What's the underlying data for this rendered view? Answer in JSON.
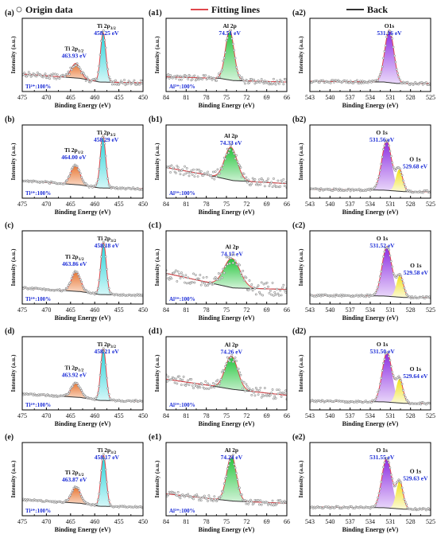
{
  "legend": {
    "origin": "Origin data",
    "fitting": "Fitting lines",
    "back": "Back"
  },
  "colors": {
    "ti_half": "#e8742f",
    "ti_three_half": "#1fd3d9",
    "al": "#22c43a",
    "o_main": "#8b2be2",
    "o_shoulder": "#f0e21a",
    "fit": "#e0474c",
    "back": "#333333",
    "label_blue": "#1a2bd6"
  },
  "xlabel": "Binding Energy (eV)",
  "ylabel": "Intensity (a.u.)",
  "chart_data": [
    {
      "id": "a",
      "type": "line",
      "row": 0,
      "col": 0,
      "label": "(a)",
      "xlim": [
        475,
        450
      ],
      "xticks": [
        475,
        470,
        465,
        460,
        455,
        450
      ],
      "ylim": [
        0,
        1
      ],
      "badge": "Ti⁴⁺:100%",
      "noise": 0.035,
      "background": [
        [
          475,
          0.24
        ],
        [
          463,
          0.18
        ],
        [
          459,
          0.13
        ],
        [
          450,
          0.12
        ]
      ],
      "peaks": [
        {
          "center": 463.93,
          "fwhm": 2.2,
          "height": 0.2,
          "fill": "ti_half",
          "name": "Ti 2p",
          "sub": "1/2",
          "value": "463.93 eV"
        },
        {
          "center": 458.25,
          "fwhm": 1.3,
          "height": 0.68,
          "fill": "ti_three_half",
          "name": "Ti 2p",
          "sub": "3/2",
          "value": "458.25 eV"
        }
      ]
    },
    {
      "id": "a1",
      "type": "line",
      "row": 0,
      "col": 1,
      "label": "(a1)",
      "xlim": [
        84,
        66
      ],
      "xticks": [
        84,
        81,
        78,
        75,
        72,
        69,
        66
      ],
      "ylim": [
        0,
        1
      ],
      "badge": "Al³⁺:100%",
      "noise": 0.04,
      "background": [
        [
          84,
          0.2
        ],
        [
          76,
          0.18
        ],
        [
          74,
          0.15
        ],
        [
          66,
          0.13
        ]
      ],
      "peaks": [
        {
          "center": 74.51,
          "fwhm": 1.5,
          "height": 0.68,
          "fill": "al",
          "name": "Al 2p",
          "sub": "",
          "value": "74.51 eV"
        }
      ]
    },
    {
      "id": "a2",
      "type": "line",
      "row": 0,
      "col": 2,
      "label": "(a2)",
      "xlim": [
        543,
        525
      ],
      "xticks": [
        543,
        540,
        537,
        534,
        531,
        528,
        525
      ],
      "ylim": [
        0,
        1
      ],
      "badge": "",
      "noise": 0.02,
      "background": [
        [
          543,
          0.14
        ],
        [
          532,
          0.13
        ],
        [
          530,
          0.11
        ],
        [
          525,
          0.11
        ]
      ],
      "peaks": [
        {
          "center": 531.16,
          "fwhm": 1.6,
          "height": 0.72,
          "fill": "o_main",
          "name": "O1s",
          "sub": "",
          "value": "531.16 eV"
        }
      ]
    },
    {
      "id": "b",
      "type": "line",
      "row": 1,
      "col": 0,
      "label": "(b)",
      "xlim": [
        475,
        450
      ],
      "xticks": [
        475,
        470,
        465,
        460,
        455,
        450
      ],
      "ylim": [
        0,
        1
      ],
      "badge": "Ti⁴⁺:100%",
      "noise": 0.015,
      "background": [
        [
          475,
          0.24
        ],
        [
          463,
          0.18
        ],
        [
          459,
          0.14
        ],
        [
          450,
          0.13
        ]
      ],
      "peaks": [
        {
          "center": 464.0,
          "fwhm": 2.2,
          "height": 0.27,
          "fill": "ti_half",
          "name": "Ti 2p",
          "sub": "1/2",
          "value": "464.00 eV"
        },
        {
          "center": 458.29,
          "fwhm": 1.3,
          "height": 0.72,
          "fill": "ti_three_half",
          "name": "Ti 2p",
          "sub": "3/2",
          "value": "458.29 eV"
        }
      ]
    },
    {
      "id": "b1",
      "type": "line",
      "row": 1,
      "col": 1,
      "label": "(b1)",
      "xlim": [
        84,
        66
      ],
      "xticks": [
        84,
        81,
        78,
        75,
        72,
        69,
        66
      ],
      "ylim": [
        0,
        1
      ],
      "badge": "Al³⁺:100%",
      "noise": 0.06,
      "background": [
        [
          84,
          0.42
        ],
        [
          78,
          0.32
        ],
        [
          74,
          0.24
        ],
        [
          66,
          0.2
        ]
      ],
      "peaks": [
        {
          "center": 74.33,
          "fwhm": 2.2,
          "height": 0.45,
          "fill": "al",
          "name": "Al 2p",
          "sub": "",
          "value": "74.33 eV"
        }
      ]
    },
    {
      "id": "b2",
      "type": "line",
      "row": 1,
      "col": 2,
      "label": "(b2)",
      "xlim": [
        543,
        525
      ],
      "xticks": [
        543,
        540,
        537,
        534,
        531,
        528,
        525
      ],
      "ylim": [
        0,
        1
      ],
      "badge": "",
      "noise": 0.015,
      "background": [
        [
          543,
          0.12
        ],
        [
          532,
          0.11
        ],
        [
          529,
          0.09
        ],
        [
          525,
          0.09
        ]
      ],
      "peaks": [
        {
          "center": 531.56,
          "fwhm": 1.7,
          "height": 0.68,
          "fill": "o_main",
          "name": "O 1s",
          "sub": "",
          "value": "531.56 eV"
        },
        {
          "center": 529.68,
          "fwhm": 1.2,
          "height": 0.3,
          "fill": "o_shoulder",
          "name": "O 1s",
          "sub": "",
          "value": "529.68 eV"
        }
      ]
    },
    {
      "id": "c",
      "type": "line",
      "row": 2,
      "col": 0,
      "label": "(c)",
      "xlim": [
        475,
        450
      ],
      "xticks": [
        475,
        470,
        465,
        460,
        455,
        450
      ],
      "ylim": [
        0,
        1
      ],
      "badge": "Ti⁴⁺:100%",
      "noise": 0.012,
      "background": [
        [
          475,
          0.22
        ],
        [
          463,
          0.17
        ],
        [
          459,
          0.13
        ],
        [
          450,
          0.12
        ]
      ],
      "peaks": [
        {
          "center": 463.86,
          "fwhm": 2.2,
          "height": 0.27,
          "fill": "ti_half",
          "name": "Ti 2p",
          "sub": "1/2",
          "value": "463.86 eV"
        },
        {
          "center": 458.18,
          "fwhm": 1.3,
          "height": 0.72,
          "fill": "ti_three_half",
          "name": "Ti 2p",
          "sub": "3/2",
          "value": "458.18 eV"
        }
      ]
    },
    {
      "id": "c1",
      "type": "line",
      "row": 2,
      "col": 1,
      "label": "(c1)",
      "xlim": [
        84,
        66
      ],
      "xticks": [
        84,
        81,
        78,
        75,
        72,
        69,
        66
      ],
      "ylim": [
        0,
        1
      ],
      "badge": "Al³⁺:100%",
      "noise": 0.09,
      "background": [
        [
          84,
          0.42
        ],
        [
          78,
          0.3
        ],
        [
          74,
          0.22
        ],
        [
          66,
          0.2
        ]
      ],
      "peaks": [
        {
          "center": 74.17,
          "fwhm": 2.8,
          "height": 0.4,
          "fill": "al",
          "name": "Al 2p",
          "sub": "",
          "value": "74.17 eV"
        }
      ]
    },
    {
      "id": "c2",
      "type": "line",
      "row": 2,
      "col": 2,
      "label": "(c2)",
      "xlim": [
        543,
        525
      ],
      "xticks": [
        543,
        540,
        537,
        534,
        531,
        528,
        525
      ],
      "ylim": [
        0,
        1
      ],
      "badge": "",
      "noise": 0.015,
      "background": [
        [
          543,
          0.12
        ],
        [
          532,
          0.11
        ],
        [
          529,
          0.09
        ],
        [
          525,
          0.09
        ]
      ],
      "peaks": [
        {
          "center": 531.52,
          "fwhm": 1.7,
          "height": 0.68,
          "fill": "o_main",
          "name": "O 1s",
          "sub": "",
          "value": "531.52 eV"
        },
        {
          "center": 529.58,
          "fwhm": 1.2,
          "height": 0.3,
          "fill": "o_shoulder",
          "name": "O 1s",
          "sub": "",
          "value": "529.58 eV"
        }
      ]
    },
    {
      "id": "d",
      "type": "line",
      "row": 3,
      "col": 0,
      "label": "(d)",
      "xlim": [
        475,
        450
      ],
      "xticks": [
        475,
        470,
        465,
        460,
        455,
        450
      ],
      "ylim": [
        0,
        1
      ],
      "badge": "Ti⁴⁺:100%",
      "noise": 0.012,
      "background": [
        [
          475,
          0.22
        ],
        [
          463,
          0.17
        ],
        [
          459,
          0.13
        ],
        [
          450,
          0.12
        ]
      ],
      "peaks": [
        {
          "center": 463.92,
          "fwhm": 2.2,
          "height": 0.2,
          "fill": "ti_half",
          "name": "Ti 2p",
          "sub": "1/2",
          "value": "463.92 eV"
        },
        {
          "center": 458.21,
          "fwhm": 1.3,
          "height": 0.72,
          "fill": "ti_three_half",
          "name": "Ti 2p",
          "sub": "3/2",
          "value": "458.21 eV"
        }
      ]
    },
    {
      "id": "d1",
      "type": "line",
      "row": 3,
      "col": 1,
      "label": "(d1)",
      "xlim": [
        84,
        66
      ],
      "xticks": [
        84,
        81,
        78,
        75,
        72,
        69,
        66
      ],
      "ylim": [
        0,
        1
      ],
      "badge": "Al³⁺:100%",
      "noise": 0.07,
      "background": [
        [
          84,
          0.42
        ],
        [
          78,
          0.34
        ],
        [
          74,
          0.28
        ],
        [
          66,
          0.2
        ]
      ],
      "peaks": [
        {
          "center": 74.26,
          "fwhm": 2.2,
          "height": 0.45,
          "fill": "al",
          "name": "Al 2p",
          "sub": "",
          "value": "74.26 eV"
        }
      ]
    },
    {
      "id": "d2",
      "type": "line",
      "row": 3,
      "col": 2,
      "label": "(d2)",
      "xlim": [
        543,
        525
      ],
      "xticks": [
        543,
        540,
        537,
        534,
        531,
        528,
        525
      ],
      "ylim": [
        0,
        1
      ],
      "badge": "",
      "noise": 0.015,
      "background": [
        [
          543,
          0.12
        ],
        [
          532,
          0.11
        ],
        [
          529,
          0.09
        ],
        [
          525,
          0.09
        ]
      ],
      "peaks": [
        {
          "center": 531.5,
          "fwhm": 1.7,
          "height": 0.68,
          "fill": "o_main",
          "name": "O 1s",
          "sub": "",
          "value": "531.50 eV"
        },
        {
          "center": 529.64,
          "fwhm": 1.2,
          "height": 0.33,
          "fill": "o_shoulder",
          "name": "O 1s",
          "sub": "",
          "value": "529.64 eV"
        }
      ]
    },
    {
      "id": "e",
      "type": "line",
      "row": 4,
      "col": 0,
      "label": "(e)",
      "xlim": [
        475,
        450
      ],
      "xticks": [
        475,
        470,
        465,
        460,
        455,
        450
      ],
      "ylim": [
        0,
        1
      ],
      "badge": "Ti⁴⁺:100%",
      "noise": 0.012,
      "background": [
        [
          475,
          0.22
        ],
        [
          463,
          0.17
        ],
        [
          459,
          0.13
        ],
        [
          450,
          0.12
        ]
      ],
      "peaks": [
        {
          "center": 463.87,
          "fwhm": 2.2,
          "height": 0.22,
          "fill": "ti_half",
          "name": "Ti 2p",
          "sub": "1/2",
          "value": "463.87 eV"
        },
        {
          "center": 458.17,
          "fwhm": 1.3,
          "height": 0.7,
          "fill": "ti_three_half",
          "name": "Ti 2p",
          "sub": "3/2",
          "value": "458.17 eV"
        }
      ]
    },
    {
      "id": "e1",
      "type": "line",
      "row": 4,
      "col": 1,
      "label": "(e1)",
      "xlim": [
        84,
        66
      ],
      "xticks": [
        84,
        81,
        78,
        75,
        72,
        69,
        66
      ],
      "ylim": [
        0,
        1
      ],
      "badge": "Al³⁺:100%",
      "noise": 0.04,
      "background": [
        [
          84,
          0.3
        ],
        [
          78,
          0.24
        ],
        [
          74,
          0.2
        ],
        [
          66,
          0.17
        ]
      ],
      "peaks": [
        {
          "center": 74.24,
          "fwhm": 1.7,
          "height": 0.62,
          "fill": "al",
          "name": "Al 2p",
          "sub": "",
          "value": "74.24 eV"
        }
      ]
    },
    {
      "id": "e2",
      "type": "line",
      "row": 4,
      "col": 2,
      "label": "(e2)",
      "xlim": [
        543,
        525
      ],
      "xticks": [
        543,
        540,
        537,
        534,
        531,
        528,
        525
      ],
      "ylim": [
        0,
        1
      ],
      "badge": "",
      "noise": 0.015,
      "background": [
        [
          543,
          0.12
        ],
        [
          532,
          0.11
        ],
        [
          529,
          0.09
        ],
        [
          525,
          0.09
        ]
      ],
      "peaks": [
        {
          "center": 531.55,
          "fwhm": 1.7,
          "height": 0.68,
          "fill": "o_main",
          "name": "O 1s",
          "sub": "",
          "value": "531.55 eV"
        },
        {
          "center": 529.63,
          "fwhm": 1.2,
          "height": 0.38,
          "fill": "o_shoulder",
          "name": "O 1s",
          "sub": "",
          "value": "529.63 eV"
        }
      ]
    }
  ]
}
